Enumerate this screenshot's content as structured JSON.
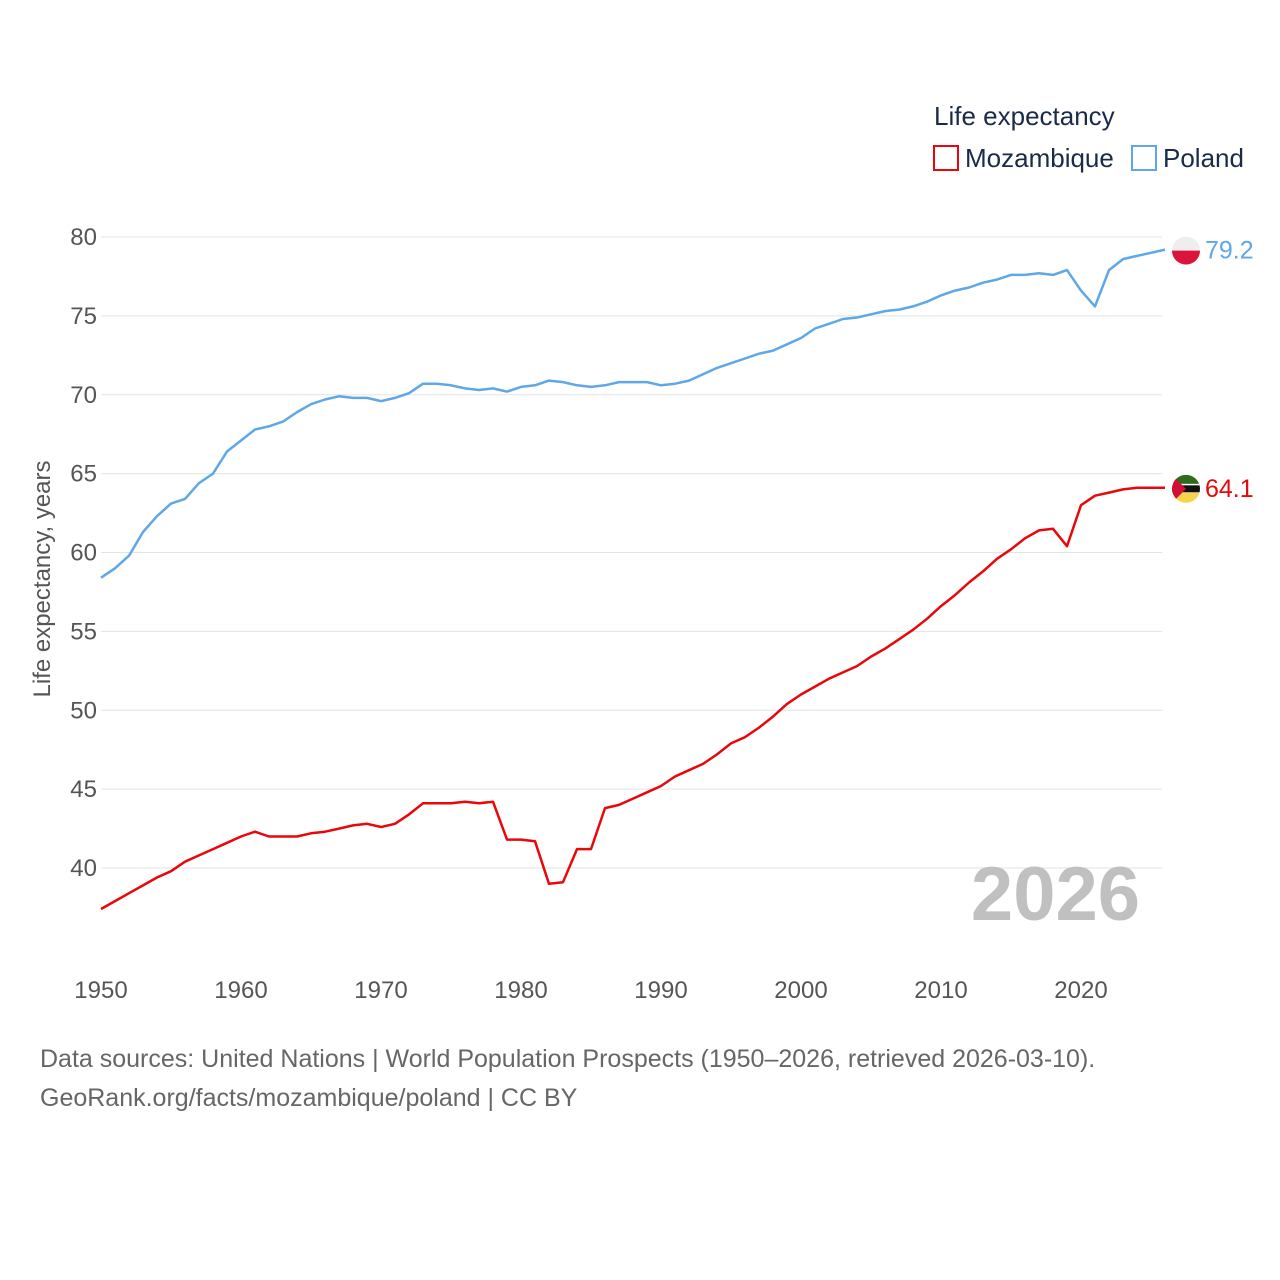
{
  "chart_data": {
    "type": "line",
    "title": "",
    "legend_title": "Life expectancy",
    "legend_position": "top-right",
    "ylabel": "Life expectancy, years",
    "xlabel": "",
    "xlim": [
      1950,
      2026
    ],
    "ylim": [
      35,
      82
    ],
    "x_ticks": [
      1950,
      1960,
      1970,
      1980,
      1990,
      2000,
      2010,
      2020
    ],
    "y_ticks": [
      40,
      45,
      50,
      55,
      60,
      65,
      70,
      75,
      80
    ],
    "grid": true,
    "current_year": "2026",
    "x": [
      1950,
      1951,
      1952,
      1953,
      1954,
      1955,
      1956,
      1957,
      1958,
      1959,
      1960,
      1961,
      1962,
      1963,
      1964,
      1965,
      1966,
      1967,
      1968,
      1969,
      1970,
      1971,
      1972,
      1973,
      1974,
      1975,
      1976,
      1977,
      1978,
      1979,
      1980,
      1981,
      1982,
      1983,
      1984,
      1985,
      1986,
      1987,
      1988,
      1989,
      1990,
      1991,
      1992,
      1993,
      1994,
      1995,
      1996,
      1997,
      1998,
      1999,
      2000,
      2001,
      2002,
      2003,
      2004,
      2005,
      2006,
      2007,
      2008,
      2009,
      2010,
      2011,
      2012,
      2013,
      2014,
      2015,
      2016,
      2017,
      2018,
      2019,
      2020,
      2021,
      2022,
      2023,
      2024,
      2025,
      2026
    ],
    "series": [
      {
        "name": "Mozambique",
        "color": "#e8070b",
        "end_label": "64.1",
        "flag": "mozambique-flag",
        "values": [
          37.4,
          37.9,
          38.4,
          38.9,
          39.4,
          39.8,
          40.4,
          40.8,
          41.2,
          41.6,
          42.0,
          42.3,
          42.0,
          42.0,
          42.0,
          42.2,
          42.3,
          42.5,
          42.7,
          42.8,
          42.6,
          42.8,
          43.4,
          44.1,
          44.1,
          44.1,
          44.2,
          44.1,
          44.2,
          41.8,
          41.8,
          41.7,
          39.0,
          39.1,
          41.2,
          41.2,
          43.8,
          44.0,
          44.4,
          44.8,
          45.2,
          45.8,
          46.2,
          46.6,
          47.2,
          47.9,
          48.3,
          48.9,
          49.6,
          50.4,
          51.0,
          51.5,
          52.0,
          52.4,
          52.8,
          53.4,
          53.9,
          54.5,
          55.1,
          55.8,
          56.6,
          57.3,
          58.1,
          58.8,
          59.6,
          60.2,
          60.9,
          61.4,
          61.5,
          60.4,
          63.0,
          63.6,
          63.8,
          64.0,
          64.1,
          64.1,
          64.1
        ]
      },
      {
        "name": "Poland",
        "color": "#5fa7e6",
        "end_label": "79.2",
        "flag": "poland-flag",
        "values": [
          58.4,
          59.0,
          59.8,
          61.3,
          62.3,
          63.1,
          63.4,
          64.4,
          65.0,
          66.4,
          67.1,
          67.8,
          68.0,
          68.3,
          68.9,
          69.4,
          69.7,
          69.9,
          69.8,
          69.8,
          69.6,
          69.8,
          70.1,
          70.7,
          70.7,
          70.6,
          70.4,
          70.3,
          70.4,
          70.2,
          70.5,
          70.6,
          70.9,
          70.8,
          70.6,
          70.5,
          70.6,
          70.8,
          70.8,
          70.8,
          70.6,
          70.7,
          70.9,
          71.3,
          71.7,
          72.0,
          72.3,
          72.6,
          72.8,
          73.2,
          73.6,
          74.2,
          74.5,
          74.8,
          74.9,
          75.1,
          75.3,
          75.4,
          75.6,
          75.9,
          76.3,
          76.6,
          76.8,
          77.1,
          77.3,
          77.6,
          77.6,
          77.7,
          77.6,
          77.9,
          76.6,
          75.6,
          77.9,
          78.6,
          78.8,
          79.0,
          79.2
        ]
      }
    ]
  },
  "footer": {
    "line1": "Data sources: United Nations | World Population Prospects (1950–2026, retrieved 2026-03-10).",
    "line2": "GeoRank.org/facts/mozambique/poland | CC BY"
  }
}
